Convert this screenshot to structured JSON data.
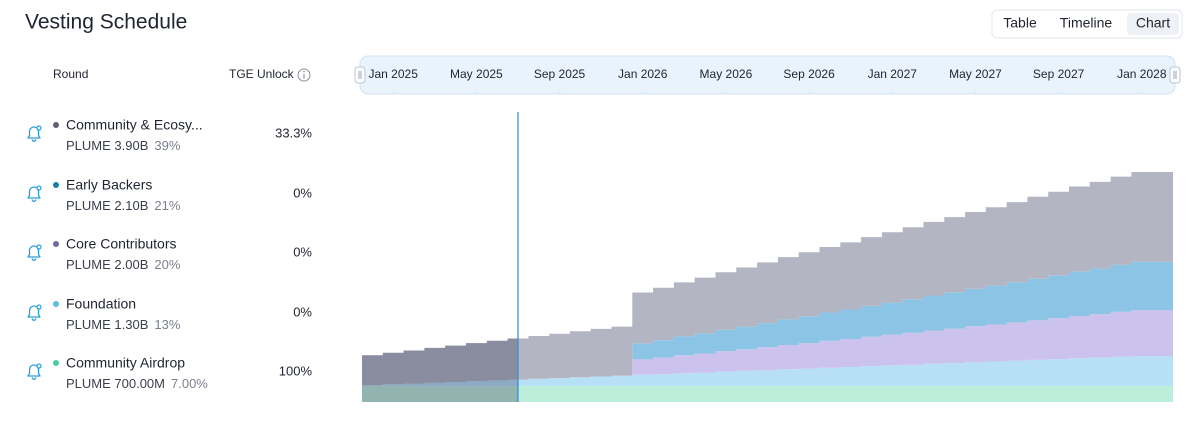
{
  "header": {
    "title": "Vesting Schedule",
    "tabs": [
      "Table",
      "Timeline",
      "Chart"
    ],
    "active_tab": 2
  },
  "table": {
    "columns": [
      "Round",
      "TGE Unlock"
    ]
  },
  "chart_data": {
    "type": "area",
    "stacked": true,
    "step": true,
    "x": [
      "2024-12",
      "2025-01",
      "2025-02",
      "2025-03",
      "2025-04",
      "2025-05",
      "2025-06",
      "2025-07",
      "2025-08",
      "2025-09",
      "2025-10",
      "2025-11",
      "2025-12",
      "2026-01",
      "2026-02",
      "2026-03",
      "2026-04",
      "2026-05",
      "2026-06",
      "2026-07",
      "2026-08",
      "2026-09",
      "2026-10",
      "2026-11",
      "2026-12",
      "2027-01",
      "2027-02",
      "2027-03",
      "2027-04",
      "2027-05",
      "2027-06",
      "2027-07",
      "2027-08",
      "2027-09",
      "2027-10",
      "2027-11",
      "2027-12",
      "2028-01",
      "2028-02"
    ],
    "xlim": [
      "2024-12",
      "2028-03"
    ],
    "xticks": [
      {
        "value": "2025-01",
        "label": "Jan 2025"
      },
      {
        "value": "2025-05",
        "label": "May 2025"
      },
      {
        "value": "2025-09",
        "label": "Sep 2025"
      },
      {
        "value": "2026-01",
        "label": "Jan 2026"
      },
      {
        "value": "2026-05",
        "label": "May 2026"
      },
      {
        "value": "2026-09",
        "label": "Sep 2026"
      },
      {
        "value": "2027-01",
        "label": "Jan 2027"
      },
      {
        "value": "2027-05",
        "label": "May 2027"
      },
      {
        "value": "2027-09",
        "label": "Sep 2027"
      },
      {
        "value": "2028-01",
        "label": "Jan 2028"
      }
    ],
    "ylim": [
      0,
      10
    ],
    "current_date": "2025-07",
    "series": [
      {
        "name": "Community & Ecosy...",
        "amount": "PLUME 3.90B",
        "share": "39%",
        "tge_unlock": "33.3%",
        "color": "#b3b6c2",
        "dot_color": "#5d6072",
        "values": [
          1.3,
          1.37,
          1.44,
          1.51,
          1.58,
          1.65,
          1.72,
          1.79,
          1.86,
          1.93,
          2.0,
          2.07,
          2.14,
          2.21,
          2.28,
          2.35,
          2.42,
          2.5,
          2.57,
          2.64,
          2.71,
          2.78,
          2.85,
          2.92,
          2.99,
          3.06,
          3.13,
          3.2,
          3.27,
          3.34,
          3.41,
          3.48,
          3.56,
          3.63,
          3.7,
          3.77,
          3.84,
          3.9,
          3.9
        ]
      },
      {
        "name": "Early Backers",
        "amount": "PLUME 2.10B",
        "share": "21%",
        "tge_unlock": "0%",
        "color": "#8cc4e6",
        "dot_color": "#1b7fa6",
        "values": [
          0,
          0,
          0,
          0,
          0,
          0,
          0,
          0,
          0,
          0,
          0,
          0,
          0,
          0.7,
          0.76,
          0.82,
          0.88,
          0.93,
          0.99,
          1.05,
          1.11,
          1.17,
          1.23,
          1.28,
          1.34,
          1.4,
          1.46,
          1.52,
          1.58,
          1.63,
          1.69,
          1.75,
          1.81,
          1.87,
          1.93,
          1.98,
          2.04,
          2.1,
          2.1
        ]
      },
      {
        "name": "Core Contributors",
        "amount": "PLUME 2.00B",
        "share": "20%",
        "tge_unlock": "0%",
        "color": "#cbc3ee",
        "dot_color": "#6d6b9e",
        "values": [
          0,
          0,
          0,
          0,
          0,
          0,
          0,
          0,
          0,
          0,
          0,
          0,
          0,
          0.67,
          0.72,
          0.78,
          0.83,
          0.89,
          0.94,
          1.0,
          1.06,
          1.11,
          1.17,
          1.22,
          1.28,
          1.33,
          1.39,
          1.45,
          1.5,
          1.56,
          1.61,
          1.67,
          1.72,
          1.78,
          1.84,
          1.89,
          1.95,
          2.0,
          2.0
        ]
      },
      {
        "name": "Foundation",
        "amount": "PLUME 1.30B",
        "share": "13%",
        "tge_unlock": "0%",
        "color": "#b7e0f6",
        "dot_color": "#5bbde2",
        "values": [
          0.03,
          0.07,
          0.1,
          0.14,
          0.17,
          0.21,
          0.24,
          0.27,
          0.31,
          0.34,
          0.38,
          0.41,
          0.44,
          0.48,
          0.51,
          0.55,
          0.58,
          0.62,
          0.65,
          0.68,
          0.72,
          0.75,
          0.79,
          0.82,
          0.86,
          0.89,
          0.92,
          0.96,
          0.99,
          1.03,
          1.06,
          1.09,
          1.13,
          1.16,
          1.2,
          1.23,
          1.27,
          1.3,
          1.3
        ]
      },
      {
        "name": "Community Airdrop",
        "amount": "PLUME 700.00M",
        "share": "7.00%",
        "tge_unlock": "100%",
        "color": "#bdeedc",
        "dot_color": "#4cc9a0",
        "values": [
          0.7,
          0.7,
          0.7,
          0.7,
          0.7,
          0.7,
          0.7,
          0.7,
          0.7,
          0.7,
          0.7,
          0.7,
          0.7,
          0.7,
          0.7,
          0.7,
          0.7,
          0.7,
          0.7,
          0.7,
          0.7,
          0.7,
          0.7,
          0.7,
          0.7,
          0.7,
          0.7,
          0.7,
          0.7,
          0.7,
          0.7,
          0.7,
          0.7,
          0.7,
          0.7,
          0.7,
          0.7,
          0.7,
          0.7
        ]
      }
    ]
  }
}
